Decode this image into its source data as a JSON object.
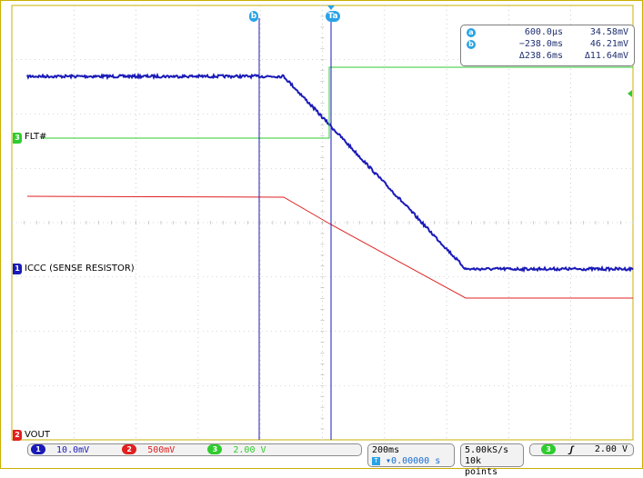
{
  "scope": {
    "channel_labels": {
      "ch3": "FLT#",
      "ch1": "ICCC (SENSE RESISTOR)",
      "ch2": "VOUT"
    },
    "channel_numbers": {
      "ch1": "1",
      "ch2": "2",
      "ch3": "3"
    },
    "cursor_tags": {
      "b": "b",
      "a": "Ta"
    },
    "readout": {
      "a_icon": "a",
      "a_time": "600.0µs",
      "a_value": "34.58mV",
      "b_icon": "b",
      "b_time": "−238.0ms",
      "b_value": "46.21mV",
      "delta_time": "Δ238.6ms",
      "delta_value": "Δ11.64mV"
    },
    "status": {
      "ch1_scale": "10.0mV",
      "ch2_scale": "500mV",
      "ch3_scale": "2.00 V",
      "timebase": "200ms",
      "trigger_position": "▾0.00000 s",
      "sample_rate": "5.00kS/s",
      "record_length": "10k points",
      "trigger_channel": "3",
      "trigger_level": "2.00 V",
      "trigger_slope_icon": "rising-edge-icon"
    },
    "colors": {
      "ch1": "#1a1ab8",
      "ch2": "#e02020",
      "ch3": "#2ecc2e",
      "cursor": "#29a3e6",
      "grid": "#b0b0b0",
      "frame": "#c9b000"
    }
  }
}
